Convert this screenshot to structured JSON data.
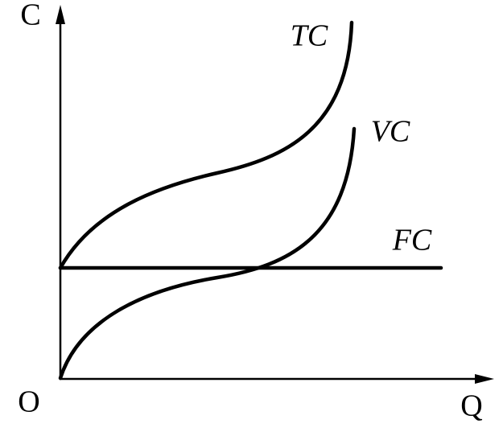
{
  "axes": {
    "y_label": "C",
    "x_label": "Q",
    "origin": "O"
  },
  "curves": [
    {
      "label": "TC"
    },
    {
      "label": "VC"
    },
    {
      "label": "FC"
    }
  ]
}
